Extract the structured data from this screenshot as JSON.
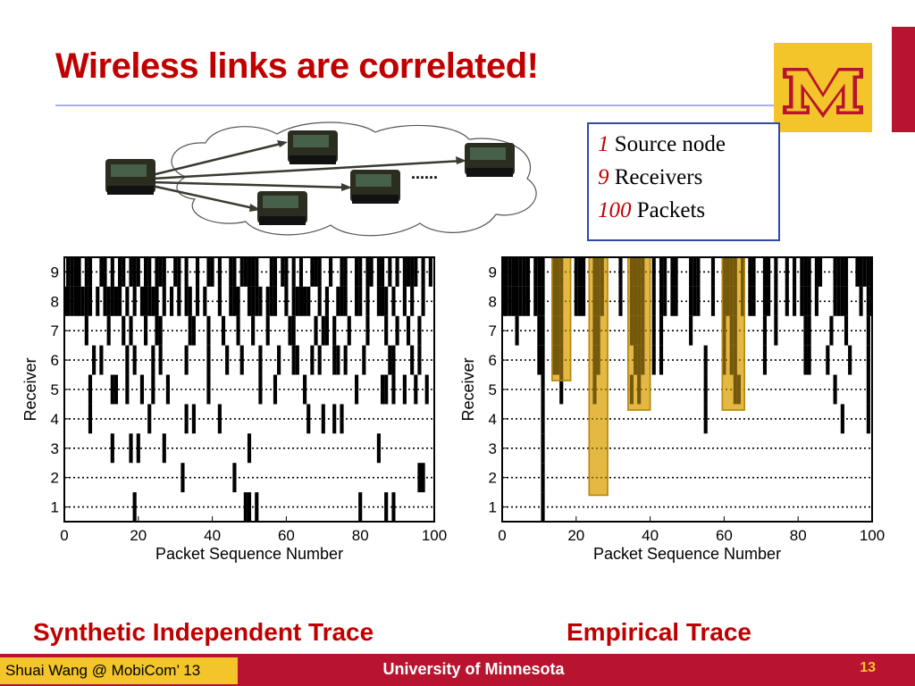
{
  "slide": {
    "title": "Wireless links are correlated!",
    "footer_left": "Shuai Wang @ MobiCom’ 13",
    "footer_center": "University of Minnesota",
    "page_number": "13",
    "colors": {
      "title": "#c00000",
      "maroon": "#b8142f",
      "gold": "#f3c52a",
      "highlight": "#d8a000"
    }
  },
  "network": {
    "ellipsis": "......",
    "icons": [
      "sensor-node-icon",
      "cloud-icon",
      "arrow-icon"
    ]
  },
  "info_box": {
    "lines": [
      {
        "num": "1",
        "text": "Source node"
      },
      {
        "num": "9",
        "text": "Receivers"
      },
      {
        "num": "100",
        "text": "Packets"
      }
    ]
  },
  "captions": {
    "left": "Synthetic Independent Trace",
    "right": "Empirical Trace"
  },
  "chart_data": [
    {
      "type": "heatmap",
      "title": "",
      "caption": "Synthetic Independent Trace",
      "xlabel": "Packet Sequence Number",
      "ylabel": "Receiver",
      "xlim": [
        0,
        100
      ],
      "ylim": [
        0.5,
        9.5
      ],
      "xticks": [
        0,
        20,
        40,
        60,
        80,
        100
      ],
      "yticks": [
        1,
        2,
        3,
        4,
        5,
        6,
        7,
        8,
        9
      ],
      "grid": "dotted horizontal",
      "note": "black cells mark lost packets per receiver",
      "losses": {
        "9": [
          1,
          2,
          3,
          4,
          6,
          7,
          10,
          11,
          13,
          15,
          16,
          18,
          19,
          20,
          22,
          23,
          25,
          26,
          27,
          30,
          31,
          33,
          36,
          39,
          40,
          42,
          45,
          46,
          48,
          49,
          50,
          51,
          52,
          56,
          57,
          59,
          60,
          62,
          64,
          67,
          68,
          69,
          72,
          75,
          76,
          79,
          80,
          82,
          83,
          85,
          86,
          88,
          90,
          92,
          93,
          94,
          95,
          97,
          99
        ],
        "8": [
          0,
          1,
          2,
          3,
          4,
          5,
          6,
          7,
          9,
          11,
          12,
          13,
          14,
          15,
          17,
          19,
          21,
          22,
          23,
          24,
          25,
          27,
          29,
          31,
          33,
          34,
          36,
          38,
          42,
          45,
          46,
          47,
          50,
          51,
          52,
          53,
          55,
          56,
          57,
          60,
          62,
          63,
          64,
          65,
          66,
          69,
          71,
          74,
          75,
          76,
          79,
          80,
          82,
          85,
          86,
          87,
          89,
          92,
          94,
          97
        ],
        "7": [
          6,
          12,
          16,
          18,
          22,
          25,
          26,
          34,
          35,
          39,
          43,
          47,
          51,
          55,
          61,
          62,
          68,
          70,
          71,
          73,
          77,
          82,
          87,
          90,
          93,
          96
        ],
        "6": [
          8,
          10,
          17,
          19,
          24,
          26,
          33,
          39,
          44,
          48,
          53,
          58,
          62,
          63,
          67,
          69,
          73,
          74,
          76,
          81,
          88,
          89,
          94,
          96
        ],
        "5": [
          7,
          13,
          14,
          17,
          21,
          24,
          28,
          39,
          53,
          57,
          65,
          79,
          86,
          87,
          89,
          92,
          95,
          98
        ],
        "4": [
          7,
          23,
          33,
          35,
          42,
          66,
          70,
          73,
          75
        ],
        "3": [
          13,
          18,
          20,
          27,
          50,
          85
        ],
        "2": [
          32,
          46,
          96,
          97
        ],
        "1": [
          19,
          49,
          50,
          52,
          80,
          87,
          89
        ]
      }
    },
    {
      "type": "heatmap",
      "title": "",
      "caption": "Empirical Trace",
      "xlabel": "Packet Sequence Number",
      "ylabel": "Receiver",
      "xlim": [
        0,
        100
      ],
      "ylim": [
        0.5,
        9.5
      ],
      "xticks": [
        0,
        20,
        40,
        60,
        80,
        100
      ],
      "yticks": [
        1,
        2,
        3,
        4,
        5,
        6,
        7,
        8,
        9
      ],
      "grid": "dotted horizontal",
      "note": "black cells mark lost packets; highlighted columns show correlated losses",
      "losses": {
        "1": [
          11
        ],
        "2": [
          11
        ],
        "3": [
          11
        ],
        "4": [
          11,
          55,
          92,
          99
        ],
        "5": [
          11,
          16,
          25,
          35,
          37,
          55,
          63,
          64,
          90,
          99
        ],
        "6": [
          10,
          11,
          14,
          15,
          16,
          25,
          26,
          36,
          37,
          38,
          41,
          43,
          55,
          60,
          62,
          63,
          71,
          82,
          83,
          88,
          94,
          99
        ],
        "7": [
          4,
          10,
          11,
          14,
          15,
          16,
          25,
          26,
          35,
          36,
          37,
          38,
          41,
          43,
          51,
          60,
          62,
          63,
          71,
          74,
          82,
          83,
          89,
          93,
          99
        ],
        "8": [
          0,
          1,
          2,
          3,
          4,
          5,
          6,
          7,
          9,
          10,
          11,
          14,
          15,
          16,
          20,
          21,
          22,
          25,
          26,
          27,
          32,
          35,
          36,
          37,
          38,
          41,
          43,
          44,
          46,
          47,
          51,
          52,
          53,
          57,
          60,
          61,
          62,
          63,
          65,
          67,
          68,
          71,
          72,
          74,
          77,
          79,
          81,
          82,
          83,
          85,
          90,
          91,
          92,
          93,
          97,
          99,
          100
        ],
        "9": [
          0,
          1,
          2,
          3,
          4,
          5,
          6,
          7,
          9,
          10,
          11,
          14,
          15,
          16,
          20,
          21,
          22,
          25,
          26,
          27,
          32,
          35,
          36,
          37,
          38,
          41,
          43,
          44,
          46,
          47,
          51,
          52,
          53,
          57,
          60,
          61,
          62,
          63,
          65,
          67,
          68,
          71,
          72,
          74,
          77,
          79,
          81,
          82,
          83,
          85,
          86,
          90,
          91,
          92,
          93,
          96,
          97,
          98,
          99,
          100
        ]
      },
      "highlights": [
        {
          "x_from": 13.5,
          "x_to": 18.5,
          "receivers_from": 5.3,
          "receivers_to": 9.5
        },
        {
          "x_from": 23.5,
          "x_to": 28.5,
          "receivers_from": 1.4,
          "receivers_to": 9.5
        },
        {
          "x_from": 34.0,
          "x_to": 40.0,
          "receivers_from": 4.3,
          "receivers_to": 9.5
        },
        {
          "x_from": 59.5,
          "x_to": 65.5,
          "receivers_from": 4.3,
          "receivers_to": 9.5
        }
      ]
    }
  ]
}
